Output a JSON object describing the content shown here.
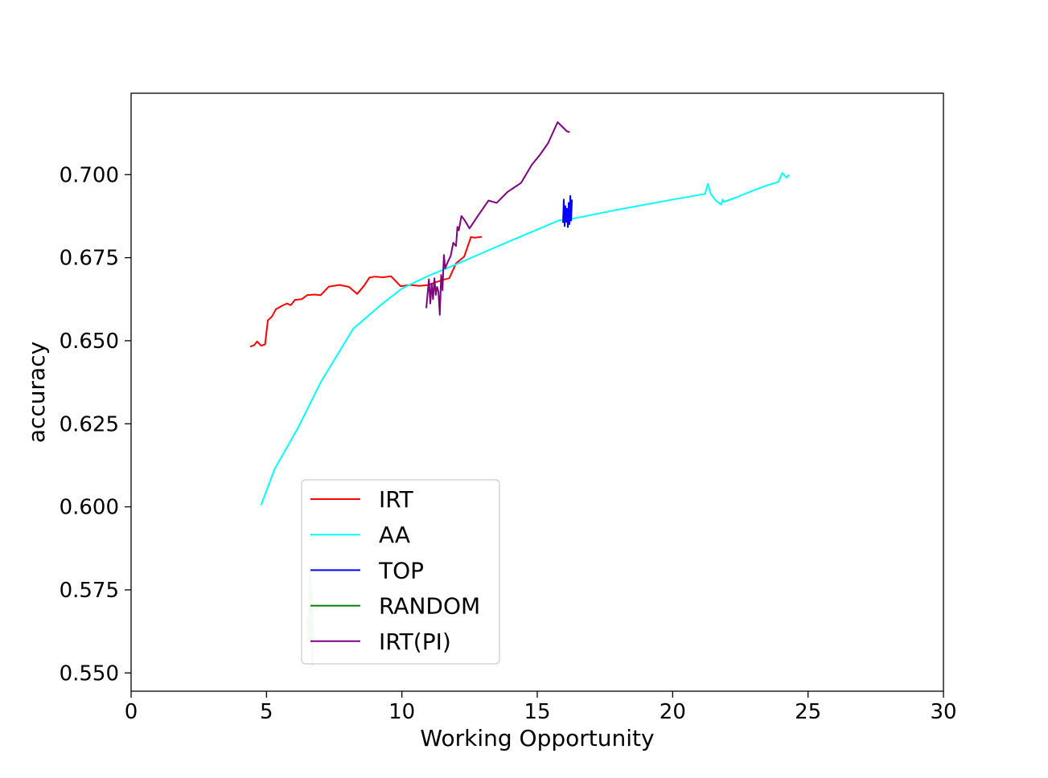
{
  "chart_data": {
    "type": "line",
    "title": "",
    "xlabel": "Working Opportunity",
    "ylabel": "accuracy",
    "xlim": [
      0,
      30
    ],
    "ylim": [
      0.5445,
      0.7245
    ],
    "xticks": [
      0,
      5,
      10,
      15,
      20,
      25,
      30
    ],
    "yticks": [
      0.55,
      0.575,
      0.6,
      0.625,
      0.65,
      0.675,
      0.7
    ],
    "x_tick_labels": [
      "0",
      "5",
      "10",
      "15",
      "20",
      "25",
      "30"
    ],
    "y_tick_labels": [
      "0.550",
      "0.575",
      "0.600",
      "0.625",
      "0.650",
      "0.675",
      "0.700"
    ],
    "grid": false,
    "legend_position": "lower-left",
    "series": [
      {
        "name": "IRT",
        "color": "#ff0000",
        "x": [
          4.4,
          4.55,
          4.65,
          4.8,
          4.95,
          5.05,
          5.2,
          5.35,
          5.55,
          5.75,
          5.9,
          6.05,
          6.3,
          6.5,
          6.75,
          7.0,
          7.3,
          7.7,
          8.05,
          8.35,
          8.6,
          8.8,
          9.0,
          9.3,
          9.6,
          9.95,
          10.3,
          10.65,
          11.0,
          11.25,
          11.5,
          11.75,
          12.0,
          12.3,
          12.55,
          12.7,
          12.95
        ],
        "y": [
          0.6482,
          0.6487,
          0.6498,
          0.6485,
          0.6489,
          0.6561,
          0.6573,
          0.6595,
          0.6604,
          0.6612,
          0.6607,
          0.6623,
          0.6625,
          0.6637,
          0.6639,
          0.6637,
          0.6663,
          0.6668,
          0.6662,
          0.6641,
          0.6665,
          0.669,
          0.6693,
          0.6691,
          0.6694,
          0.6664,
          0.6668,
          0.6665,
          0.6668,
          0.6676,
          0.6683,
          0.6688,
          0.6733,
          0.6753,
          0.6812,
          0.681,
          0.6813
        ]
      },
      {
        "name": "AA",
        "color": "#00ffff",
        "x": [
          4.8,
          5.3,
          6.2,
          7.0,
          8.2,
          9.2,
          10.0,
          11.0,
          12.0,
          13.5,
          14.8,
          15.8,
          16.3,
          18.0,
          20.0,
          21.2,
          21.3,
          21.4,
          21.6,
          21.8,
          21.85,
          21.9,
          22.4,
          23.0,
          23.5,
          23.9,
          24.05,
          24.2,
          24.3
        ],
        "y": [
          0.6005,
          0.6113,
          0.6243,
          0.6375,
          0.6536,
          0.6606,
          0.6657,
          0.6696,
          0.673,
          0.6783,
          0.6828,
          0.6862,
          0.6867,
          0.6895,
          0.6925,
          0.6942,
          0.6972,
          0.6943,
          0.6921,
          0.691,
          0.6925,
          0.6918,
          0.6933,
          0.6953,
          0.6968,
          0.6978,
          0.7005,
          0.6991,
          0.6999
        ]
      },
      {
        "name": "TOP",
        "color": "#0000ff",
        "x": [
          15.95,
          15.98,
          16.01,
          16.04,
          16.07,
          16.1,
          16.13,
          16.16,
          16.19,
          16.22,
          16.25,
          16.28
        ],
        "y": [
          0.6855,
          0.6925,
          0.6845,
          0.6905,
          0.6858,
          0.6897,
          0.6842,
          0.6915,
          0.6851,
          0.6936,
          0.6862,
          0.6925
        ]
      },
      {
        "name": "RANDOM",
        "color": "#008000",
        "opacity": 0.22,
        "x": [
          6.5,
          6.53,
          6.56,
          6.59,
          6.62,
          6.64,
          6.66,
          6.68,
          6.7,
          6.72
        ],
        "y": [
          0.5668,
          0.5598,
          0.5648,
          0.582,
          0.5608,
          0.5788,
          0.5598,
          0.5748,
          0.5525,
          0.5635
        ]
      },
      {
        "name": "IRT(PI)",
        "color": "#800080",
        "x": [
          10.9,
          11.0,
          11.05,
          11.1,
          11.15,
          11.2,
          11.25,
          11.3,
          11.35,
          11.4,
          11.45,
          11.5,
          11.55,
          11.6,
          11.7,
          11.8,
          11.9,
          12.0,
          12.05,
          12.1,
          12.2,
          12.3,
          12.5,
          12.8,
          13.2,
          13.5,
          13.9,
          14.4,
          14.8,
          15.1,
          15.4,
          15.75,
          16.1,
          16.2
        ],
        "y": [
          0.6598,
          0.6685,
          0.6612,
          0.6672,
          0.6625,
          0.6688,
          0.6638,
          0.6662,
          0.6648,
          0.6578,
          0.6698,
          0.6652,
          0.6758,
          0.6718,
          0.6738,
          0.6755,
          0.6795,
          0.6785,
          0.6843,
          0.6832,
          0.6875,
          0.6865,
          0.6838,
          0.6875,
          0.6922,
          0.6915,
          0.6948,
          0.6975,
          0.703,
          0.706,
          0.7095,
          0.7158,
          0.713,
          0.7128
        ]
      }
    ]
  }
}
